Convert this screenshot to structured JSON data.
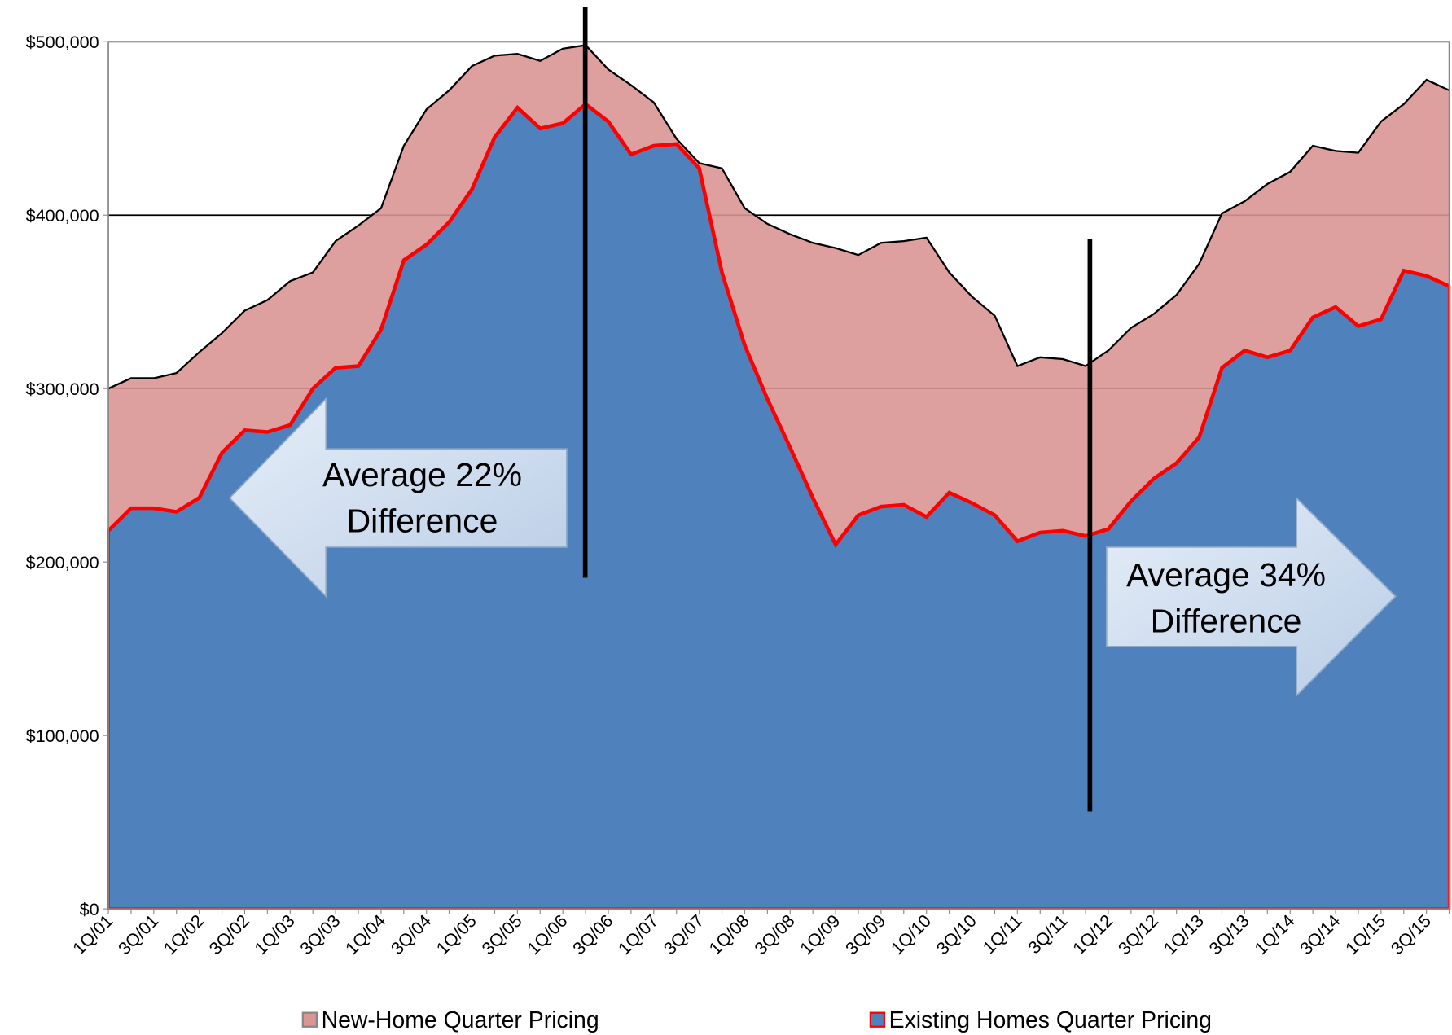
{
  "chart_data": {
    "type": "area",
    "categories": [
      "1Q/01",
      null,
      "3Q/01",
      null,
      "1Q/02",
      null,
      "3Q/02",
      null,
      "1Q/03",
      null,
      "3Q/03",
      null,
      "1Q/04",
      null,
      "3Q/04",
      null,
      "1Q/05",
      null,
      "3Q/05",
      null,
      "1Q/06",
      null,
      "3Q/06",
      null,
      "1Q/07",
      null,
      "3Q/07",
      null,
      "1Q/08",
      null,
      "3Q/08",
      null,
      "1Q/09",
      null,
      "3Q/09",
      null,
      "1Q/10",
      null,
      "3Q/10",
      null,
      "1Q/11",
      null,
      "3Q/11",
      null,
      "1Q/12",
      null,
      "3Q/12",
      null,
      "1Q/13",
      null,
      "3Q/13",
      null,
      "1Q/14",
      null,
      "3Q/14",
      null,
      "1Q/15",
      null,
      "3Q/15",
      null
    ],
    "series": [
      {
        "name": "New-Home Quarter Pricing",
        "color": "#d99694",
        "line_color": "#000000",
        "values": [
          300000,
          306000,
          306000,
          309000,
          321000,
          332000,
          345000,
          351000,
          362000,
          367000,
          385000,
          394000,
          404000,
          440000,
          461000,
          472000,
          486000,
          492000,
          493000,
          489000,
          496000,
          498000,
          484000,
          475000,
          465000,
          444000,
          430000,
          427000,
          404000,
          395000,
          389000,
          384000,
          381000,
          377000,
          384000,
          385000,
          387000,
          367000,
          353000,
          342000,
          313000,
          318000,
          317000,
          313000,
          322000,
          335000,
          343000,
          354000,
          372000,
          401000,
          408000,
          418000,
          425000,
          440000,
          437000,
          436000,
          454000,
          464000,
          478000,
          472000
        ]
      },
      {
        "name": "Existing Homes Quarter Pricing",
        "color": "#4f81bd",
        "line_color": "#ff0000",
        "values": [
          218000,
          231000,
          231000,
          229000,
          237000,
          263000,
          276000,
          275000,
          279000,
          300000,
          312000,
          313000,
          334000,
          374000,
          383000,
          396000,
          415000,
          445000,
          462000,
          450000,
          453000,
          464000,
          454000,
          435000,
          440000,
          441000,
          427000,
          367000,
          325000,
          294000,
          266000,
          237000,
          210000,
          227000,
          232000,
          233000,
          226000,
          240000,
          234000,
          227000,
          212000,
          217000,
          218000,
          215000,
          219000,
          235000,
          248000,
          257000,
          272000,
          312000,
          322000,
          318000,
          322000,
          341000,
          347000,
          336000,
          340000,
          368000,
          365000,
          359000
        ]
      }
    ],
    "ylim": [
      0,
      500000
    ],
    "yticks": [
      {
        "value": 0,
        "label": "$0"
      },
      {
        "value": 100000,
        "label": "$100,000"
      },
      {
        "value": 200000,
        "label": "$200,000"
      },
      {
        "value": 300000,
        "label": "$300,000"
      },
      {
        "value": 400000,
        "label": "$400,000"
      },
      {
        "value": 500000,
        "label": "$500,000"
      }
    ],
    "grid": true,
    "legend": "bottom",
    "annotations": [
      {
        "lines": [
          "Average 22%",
          "Difference"
        ],
        "direction": "left"
      },
      {
        "lines": [
          "Average 34%",
          "Difference"
        ],
        "direction": "right"
      }
    ]
  }
}
